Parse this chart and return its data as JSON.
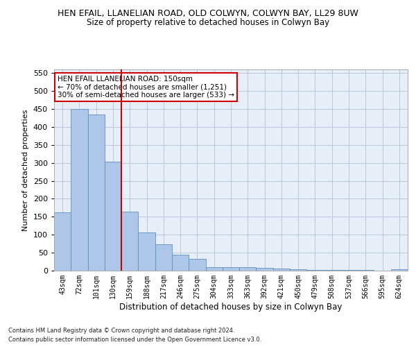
{
  "title": "HEN EFAIL, LLANELIAN ROAD, OLD COLWYN, COLWYN BAY, LL29 8UW",
  "subtitle": "Size of property relative to detached houses in Colwyn Bay",
  "xlabel": "Distribution of detached houses by size in Colwyn Bay",
  "ylabel": "Number of detached properties",
  "categories": [
    "43sqm",
    "72sqm",
    "101sqm",
    "130sqm",
    "159sqm",
    "188sqm",
    "217sqm",
    "246sqm",
    "275sqm",
    "304sqm",
    "333sqm",
    "363sqm",
    "392sqm",
    "421sqm",
    "450sqm",
    "479sqm",
    "508sqm",
    "537sqm",
    "566sqm",
    "595sqm",
    "624sqm"
  ],
  "values": [
    163,
    450,
    435,
    303,
    165,
    107,
    73,
    44,
    33,
    10,
    10,
    9,
    7,
    5,
    3,
    2,
    2,
    1,
    1,
    0,
    4
  ],
  "bar_color": "#aec6e8",
  "bar_edge_color": "#5a8fc0",
  "vline_x_index": 3.5,
  "vline_color": "#cc0000",
  "ylim": [
    0,
    560
  ],
  "yticks": [
    0,
    50,
    100,
    150,
    200,
    250,
    300,
    350,
    400,
    450,
    500,
    550
  ],
  "annotation_title": "HEN EFAIL LLANELIAN ROAD: 150sqm",
  "annotation_line1": "← 70% of detached houses are smaller (1,251)",
  "annotation_line2": "30% of semi-detached houses are larger (533) →",
  "annotation_box_color": "#ffffff",
  "annotation_box_edge": "#cc0000",
  "footer1": "Contains HM Land Registry data © Crown copyright and database right 2024.",
  "footer2": "Contains public sector information licensed under the Open Government Licence v3.0.",
  "background_color": "#e8eef8"
}
